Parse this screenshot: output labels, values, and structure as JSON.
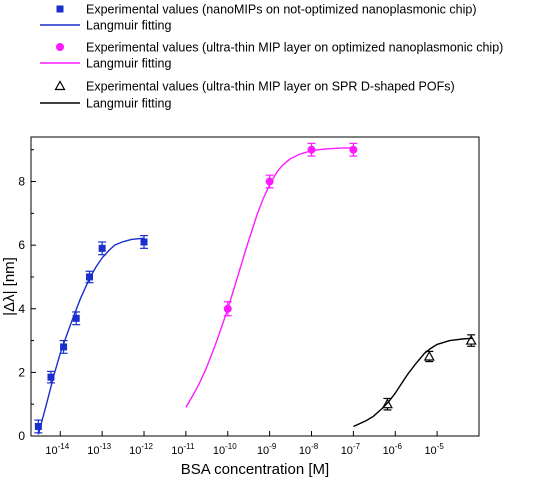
{
  "chart_data": {
    "type": "scatter",
    "title": "",
    "xlabel": "BSA concentration [M]",
    "ylabel": "|Δλ| [nm]",
    "x_scale": "log",
    "xlim": [
      2e-15,
      0.0001
    ],
    "ylim": [
      0,
      9.4
    ],
    "grid": false,
    "legend_position": "top",
    "x_ticks": [
      {
        "value": 1e-14,
        "base": "10",
        "exp": "-14"
      },
      {
        "value": 1e-13,
        "base": "10",
        "exp": "-13"
      },
      {
        "value": 1e-12,
        "base": "10",
        "exp": "-12"
      },
      {
        "value": 1e-11,
        "base": "10",
        "exp": "-11"
      },
      {
        "value": 1e-10,
        "base": "10",
        "exp": "-10"
      },
      {
        "value": 1e-09,
        "base": "10",
        "exp": "-9"
      },
      {
        "value": 1e-08,
        "base": "10",
        "exp": "-8"
      },
      {
        "value": 1e-07,
        "base": "10",
        "exp": "-7"
      },
      {
        "value": 1e-06,
        "base": "10",
        "exp": "-6"
      },
      {
        "value": 1e-05,
        "base": "10",
        "exp": "-5"
      }
    ],
    "y_ticks": [
      0,
      2,
      4,
      6,
      8
    ],
    "series": [
      {
        "name": "Experimental values (nanoMIPs on not-optimized nanoplasmonic chip)",
        "kind": "points",
        "marker": "square",
        "color": "#1a2fcc",
        "x": [
          3e-15,
          6e-15,
          1.2e-14,
          2.4e-14,
          5e-14,
          1e-13,
          1e-12
        ],
        "y": [
          0.3,
          1.85,
          2.8,
          3.7,
          5.0,
          5.9,
          6.1
        ],
        "err": [
          0.2,
          0.18,
          0.2,
          0.2,
          0.18,
          0.2,
          0.2
        ]
      },
      {
        "name": "Langmuir fitting",
        "kind": "line",
        "color": "#1a2fcc",
        "x": [
          3e-15,
          5e-15,
          7e-15,
          1e-14,
          1.5e-14,
          2e-14,
          3e-14,
          5e-14,
          7e-14,
          1e-13,
          1.5e-13,
          2e-13,
          3e-13,
          5e-13,
          1e-12
        ],
        "y": [
          0.05,
          1.15,
          1.9,
          2.6,
          3.25,
          3.7,
          4.3,
          4.95,
          5.3,
          5.6,
          5.85,
          6.0,
          6.1,
          6.18,
          6.22
        ]
      },
      {
        "name": "Experimental values (ultra-thin MIP layer on optimized nanoplasmonic chip)",
        "kind": "points",
        "marker": "circle",
        "color": "#ff1aff",
        "x": [
          1e-10,
          1e-09,
          1e-08,
          1e-07
        ],
        "y": [
          4.0,
          8.0,
          9.0,
          9.0
        ],
        "err": [
          0.22,
          0.2,
          0.2,
          0.2
        ]
      },
      {
        "name": "Langmuir fitting",
        "kind": "line",
        "color": "#ff1aff",
        "x": [
          1e-11,
          1.5e-11,
          2e-11,
          3e-11,
          5e-11,
          7e-11,
          1e-10,
          1.5e-10,
          2e-10,
          3e-10,
          5e-10,
          7e-10,
          1e-09,
          1.5e-09,
          2e-09,
          3e-09,
          5e-09,
          1e-08,
          2e-08,
          5e-08,
          1e-07
        ],
        "y": [
          0.9,
          1.3,
          1.6,
          2.1,
          2.85,
          3.4,
          4.0,
          4.75,
          5.3,
          6.05,
          6.95,
          7.45,
          7.9,
          8.3,
          8.5,
          8.7,
          8.85,
          8.97,
          9.02,
          9.05,
          9.06
        ]
      },
      {
        "name": "Experimental values (ultra-thin MIP layer on SPR D-shaped POFs)",
        "kind": "points",
        "marker": "triangle",
        "color": "#000000",
        "x": [
          6.5e-07,
          6.5e-06,
          6.5e-05
        ],
        "y": [
          1.0,
          2.5,
          3.0
        ],
        "err": [
          0.18,
          0.16,
          0.18
        ]
      },
      {
        "name": "Langmuir fitting",
        "kind": "line",
        "color": "#000000",
        "x": [
          1e-07,
          2e-07,
          3e-07,
          5e-07,
          7e-07,
          1e-06,
          1.5e-06,
          2e-06,
          3e-06,
          5e-06,
          7e-06,
          1e-05,
          2e-05,
          4e-05,
          7e-05
        ],
        "y": [
          0.3,
          0.48,
          0.62,
          0.88,
          1.08,
          1.35,
          1.7,
          1.95,
          2.25,
          2.6,
          2.75,
          2.88,
          3.0,
          3.05,
          3.07
        ]
      }
    ]
  }
}
